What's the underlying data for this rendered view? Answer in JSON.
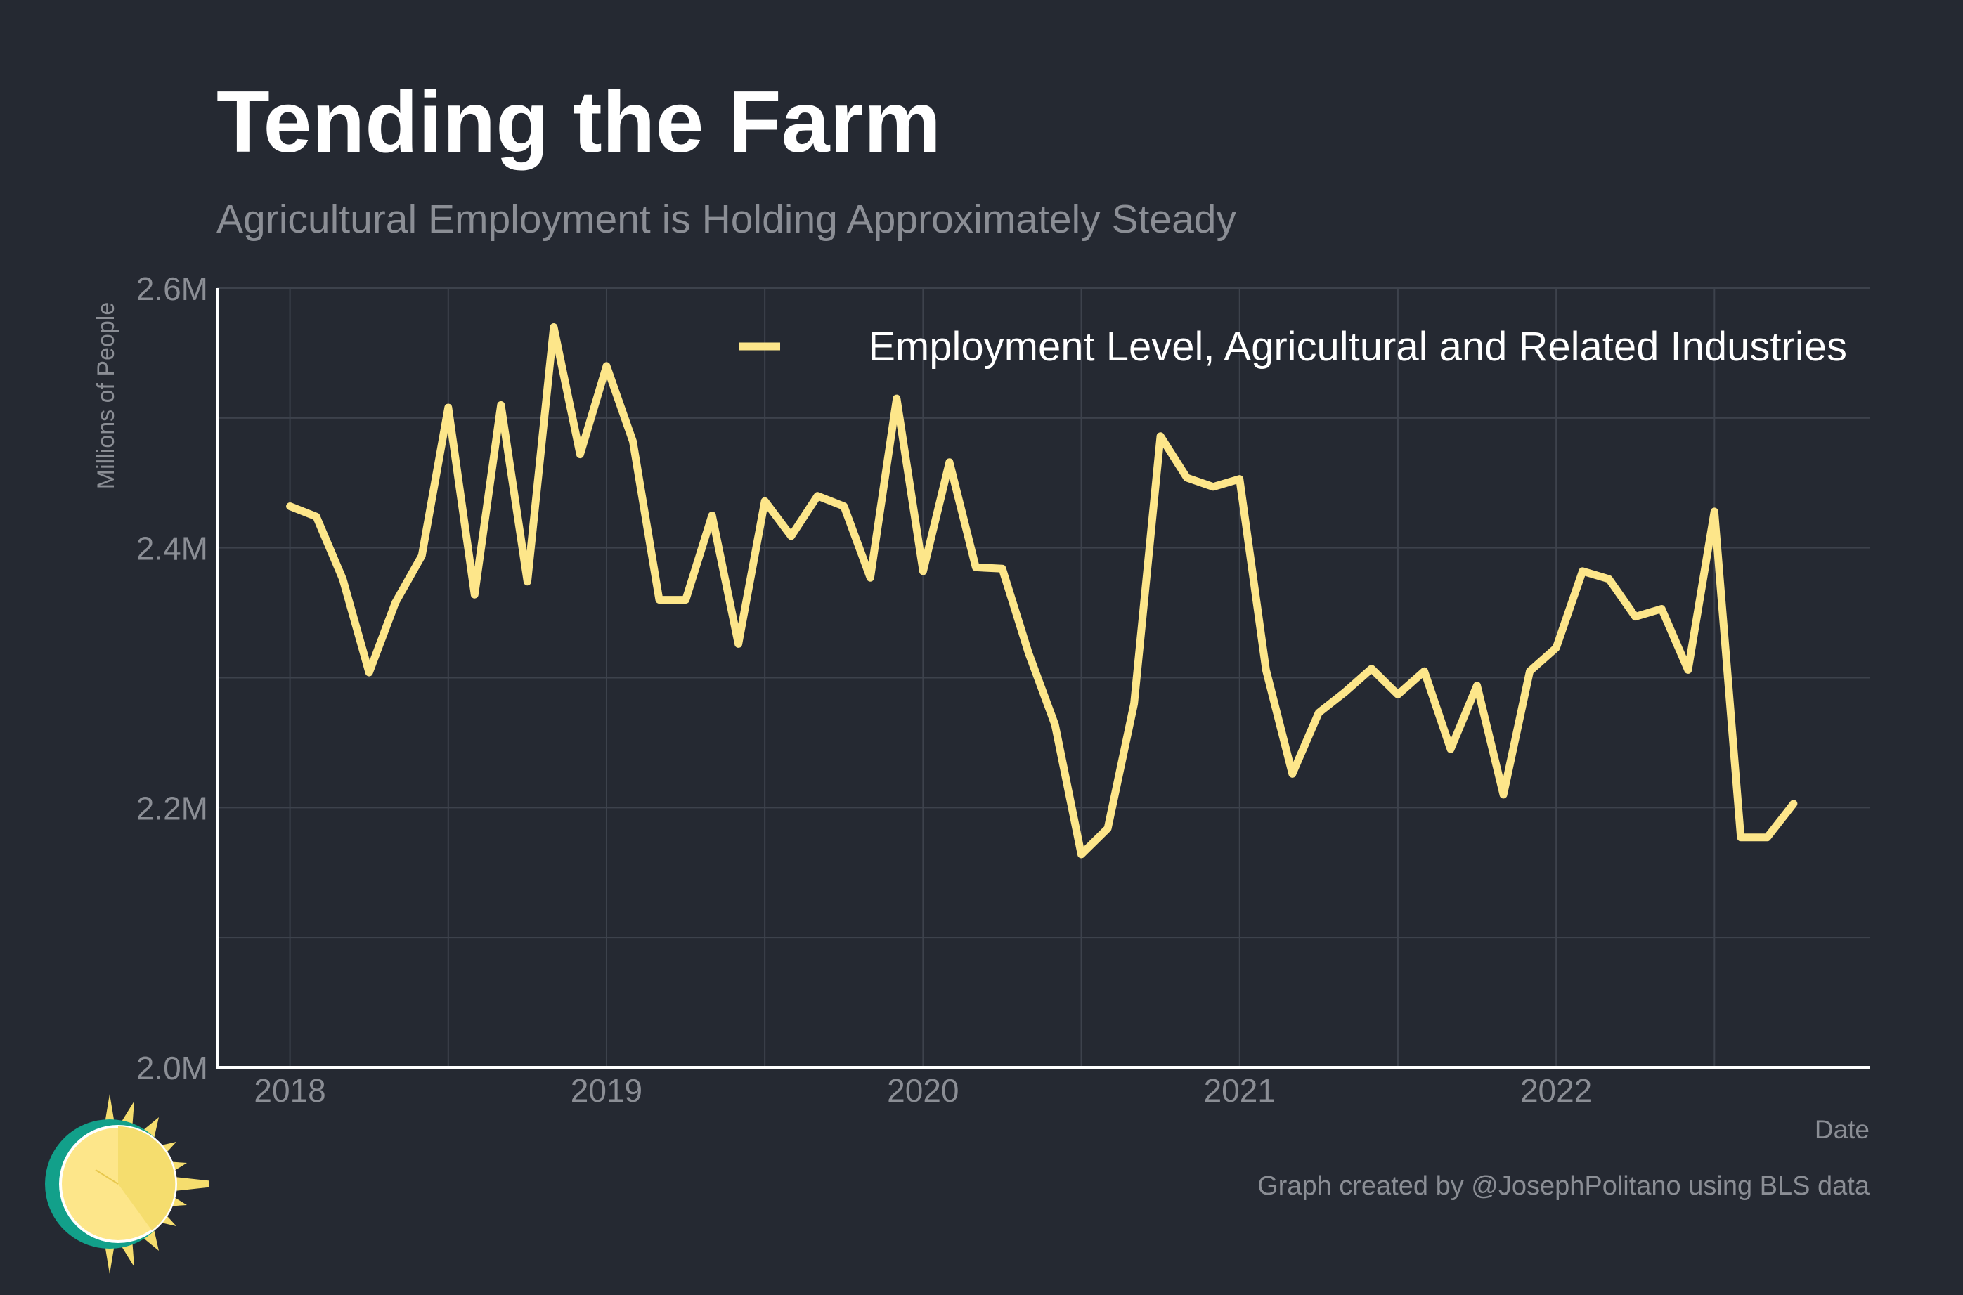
{
  "header": {
    "title": "Tending the Farm",
    "subtitle": "Agricultural Employment is Holding Approximately Steady"
  },
  "footer": {
    "credit": "Graph created by @JosephPolitano using BLS data"
  },
  "colors": {
    "background": "#252932",
    "series": "#fde68a",
    "grid": "#3d424c",
    "axis": "#ffffff",
    "muted_text": "#8b8e95"
  },
  "chart_data": {
    "type": "line",
    "title": "Tending the Farm",
    "subtitle": "Agricultural Employment is Holding Approximately Steady",
    "xlabel": "Date",
    "ylabel": "Millions of People",
    "xlim": [
      2017.77,
      2022.99
    ],
    "ylim": [
      2.0,
      2.6
    ],
    "x_ticks": [
      2018,
      2019,
      2020,
      2021,
      2022
    ],
    "x_tick_labels": [
      "2018",
      "2019",
      "2020",
      "2021",
      "2022"
    ],
    "y_ticks": [
      2.0,
      2.2,
      2.4,
      2.6
    ],
    "y_tick_labels": [
      "2.0M",
      "2.2M",
      "2.4M",
      "2.6M"
    ],
    "grid": true,
    "legend_position": "top-right",
    "series": [
      {
        "name": "Employment Level, Agricultural and Related Industries",
        "x_start": 2018.0,
        "x_step_months": 1,
        "values": [
          2.432,
          2.424,
          2.376,
          2.304,
          2.358,
          2.394,
          2.508,
          2.364,
          2.51,
          2.374,
          2.57,
          2.472,
          2.54,
          2.482,
          2.36,
          2.36,
          2.425,
          2.326,
          2.436,
          2.409,
          2.44,
          2.432,
          2.377,
          2.515,
          2.382,
          2.466,
          2.385,
          2.384,
          2.319,
          2.264,
          2.164,
          2.184,
          2.28,
          2.486,
          2.454,
          2.447,
          2.453,
          2.306,
          2.226,
          2.273,
          2.289,
          2.307,
          2.287,
          2.305,
          2.245,
          2.294,
          2.21,
          2.305,
          2.323,
          2.382,
          2.376,
          2.347,
          2.353,
          2.306,
          2.428,
          2.177,
          2.177,
          2.203
        ]
      }
    ]
  }
}
